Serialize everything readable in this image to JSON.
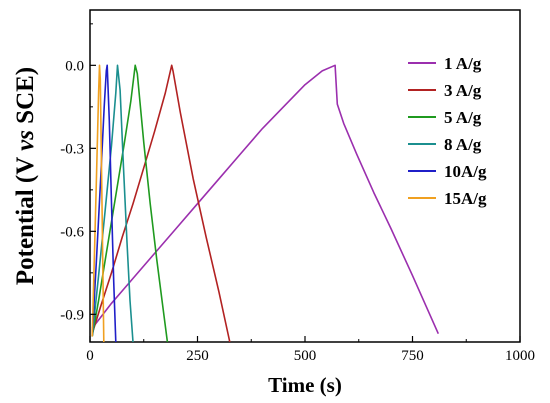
{
  "chart_data": {
    "type": "line",
    "xlabel": "Time (s)",
    "ylabel": {
      "prefix": "Potential (V ",
      "italic": "vs",
      "suffix": " SCE)"
    },
    "xlim": [
      0,
      1000
    ],
    "ylim": [
      -1.0,
      0.2
    ],
    "xticks": [
      0,
      250,
      500,
      750,
      1000
    ],
    "yticks": [
      0.0,
      -0.3,
      -0.6,
      -0.9
    ],
    "xtick_labels": [
      "0",
      "250",
      "500",
      "750",
      "1000"
    ],
    "ytick_labels": [
      "0.0",
      "-0.3",
      "-0.6",
      "-0.9"
    ],
    "grid": false,
    "legend_position": "top-right",
    "series": [
      {
        "name": "1  A/g",
        "color": "#9b2fae",
        "x": [
          5,
          50,
          100,
          150,
          200,
          250,
          300,
          350,
          400,
          450,
          500,
          540,
          570,
          575,
          590,
          620,
          660,
          700,
          750,
          790,
          810
        ],
        "y": [
          -0.95,
          -0.86,
          -0.77,
          -0.68,
          -0.59,
          -0.5,
          -0.41,
          -0.32,
          -0.23,
          -0.15,
          -0.07,
          -0.02,
          0.0,
          -0.14,
          -0.21,
          -0.32,
          -0.46,
          -0.59,
          -0.76,
          -0.9,
          -0.97
        ]
      },
      {
        "name": "3  A/g",
        "color": "#b22222",
        "x": [
          5,
          25,
          50,
          75,
          100,
          125,
          150,
          175,
          190,
          193,
          210,
          240,
          270,
          300,
          325
        ],
        "y": [
          -0.97,
          -0.87,
          -0.75,
          -0.62,
          -0.5,
          -0.37,
          -0.24,
          -0.1,
          0.0,
          -0.02,
          -0.17,
          -0.41,
          -0.62,
          -0.82,
          -1.0
        ]
      },
      {
        "name": "5  A/g",
        "color": "#1f9a1f",
        "x": [
          5,
          20,
          40,
          60,
          80,
          95,
          105,
          110,
          125,
          140,
          155,
          170,
          180
        ],
        "y": [
          -0.98,
          -0.85,
          -0.66,
          -0.47,
          -0.28,
          -0.13,
          0.0,
          -0.03,
          -0.28,
          -0.5,
          -0.7,
          -0.88,
          -1.0
        ]
      },
      {
        "name": "8  A/g",
        "color": "#1b8f8f",
        "x": [
          5,
          20,
          35,
          50,
          60,
          64,
          70,
          78,
          86,
          93,
          100
        ],
        "y": [
          -0.98,
          -0.76,
          -0.53,
          -0.29,
          -0.1,
          0.0,
          -0.09,
          -0.37,
          -0.64,
          -0.85,
          -1.0
        ]
      },
      {
        "name": "10A/g",
        "color": "#1f1fc8",
        "x": [
          5,
          15,
          25,
          33,
          38,
          40,
          45,
          50,
          55,
          60
        ],
        "y": [
          -0.98,
          -0.7,
          -0.4,
          -0.15,
          -0.02,
          0.0,
          -0.2,
          -0.5,
          -0.78,
          -1.0
        ]
      },
      {
        "name": "15A/g",
        "color": "#f0a020",
        "x": [
          5,
          10,
          15,
          20,
          22,
          24,
          28,
          32
        ],
        "y": [
          -0.98,
          -0.7,
          -0.4,
          -0.1,
          0.0,
          -0.05,
          -0.5,
          -1.0
        ]
      }
    ]
  }
}
